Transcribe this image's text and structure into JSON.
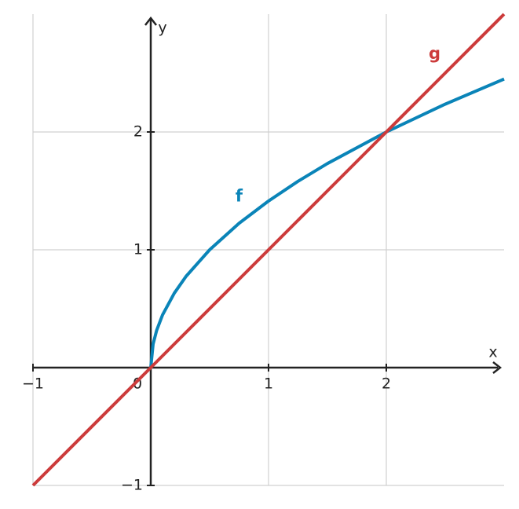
{
  "chart_data": {
    "type": "line",
    "x": [
      -1,
      0,
      0.02,
      0.05,
      0.1,
      0.2,
      0.3,
      0.5,
      0.75,
      1,
      1.25,
      1.5,
      2,
      2.5,
      3
    ],
    "series": [
      {
        "name": "f",
        "color": "#0a84b8",
        "values": [
          null,
          0,
          0.2,
          0.316,
          0.447,
          0.632,
          0.775,
          1,
          1.225,
          1.414,
          1.581,
          1.732,
          2,
          2.236,
          2.449
        ]
      },
      {
        "name": "g",
        "color": "#cc3b3b",
        "values": [
          -1,
          0,
          0.02,
          0.05,
          0.1,
          0.2,
          0.3,
          0.5,
          0.75,
          1,
          1.25,
          1.5,
          2,
          2.5,
          3
        ]
      }
    ],
    "xlabel": "x",
    "ylabel": "y",
    "xlim": [
      -1,
      3
    ],
    "ylim": [
      -1,
      3
    ],
    "xticks": [
      {
        "value": -1,
        "label": "−1"
      },
      0,
      1,
      2
    ],
    "yticks": [
      {
        "value": -1,
        "label": "−1"
      },
      1,
      2
    ],
    "grid": true
  }
}
